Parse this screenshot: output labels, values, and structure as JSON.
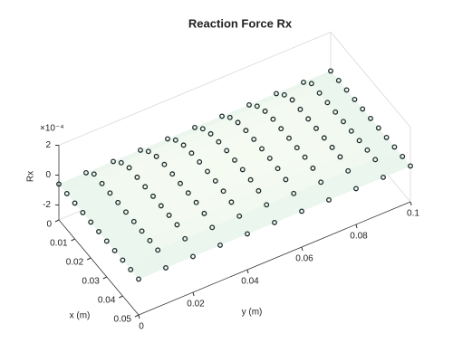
{
  "chart_data": {
    "type": "surface3d",
    "title": "Reaction Force Rx",
    "xlabel": "x (m)",
    "ylabel": "y (m)",
    "zlabel": "Rx",
    "z_exponent_label": "×10⁻⁴",
    "x": [
      0,
      0.005,
      0.01,
      0.015,
      0.02,
      0.025,
      0.03,
      0.035,
      0.04,
      0.045,
      0.05
    ],
    "y": [
      0,
      0.01,
      0.02,
      0.03,
      0.04,
      0.05,
      0.06,
      0.07,
      0.08,
      0.09,
      0.1
    ],
    "z": [
      [
        -0.6,
        -0.6,
        -0.6,
        -0.6,
        -0.6,
        -0.6,
        -0.6,
        -0.6,
        -0.6,
        -0.6,
        -0.6
      ],
      [
        -0.6,
        -0.05,
        -0.05,
        -0.05,
        -0.05,
        -0.05,
        -0.05,
        -0.05,
        -0.05,
        -0.05,
        -0.6
      ],
      [
        -0.6,
        -0.05,
        0.25,
        0.25,
        0.25,
        0.25,
        0.25,
        0.25,
        0.25,
        -0.05,
        -0.6
      ],
      [
        -0.6,
        -0.05,
        0.25,
        0.35,
        0.35,
        0.35,
        0.35,
        0.35,
        0.25,
        -0.05,
        -0.6
      ],
      [
        -0.6,
        -0.05,
        0.25,
        0.35,
        0.4,
        0.4,
        0.4,
        0.35,
        0.25,
        -0.05,
        -0.6
      ],
      [
        -0.6,
        -0.05,
        0.25,
        0.35,
        0.4,
        0.4,
        0.4,
        0.35,
        0.25,
        -0.05,
        -0.6
      ],
      [
        -0.6,
        -0.05,
        0.25,
        0.35,
        0.4,
        0.4,
        0.4,
        0.35,
        0.25,
        -0.05,
        -0.6
      ],
      [
        -0.6,
        -0.05,
        0.25,
        0.35,
        0.35,
        0.35,
        0.35,
        0.35,
        0.25,
        -0.05,
        -0.6
      ],
      [
        -0.6,
        -0.05,
        0.25,
        0.25,
        0.25,
        0.25,
        0.25,
        0.25,
        0.25,
        -0.05,
        -0.6
      ],
      [
        -0.6,
        -0.05,
        -0.05,
        -0.05,
        -0.05,
        -0.05,
        -0.05,
        -0.05,
        -0.05,
        -0.05,
        -0.6
      ],
      [
        -0.6,
        -0.6,
        -0.6,
        -0.6,
        -0.6,
        -0.6,
        -0.6,
        -0.6,
        -0.6,
        -0.6,
        -0.6
      ]
    ],
    "xlim": [
      0,
      0.05
    ],
    "xticks": [
      0,
      0.01,
      0.02,
      0.03,
      0.04,
      0.05
    ],
    "ylim": [
      0,
      0.1
    ],
    "yticks": [
      0,
      0.02,
      0.04,
      0.06,
      0.08,
      0.1
    ],
    "zlim": [
      -3,
      2
    ],
    "zticks": [
      -2,
      0,
      2
    ],
    "surface_colors": [
      "#cde8e2",
      "#fbfdf4"
    ],
    "marker_color": "#1c2b2b"
  }
}
